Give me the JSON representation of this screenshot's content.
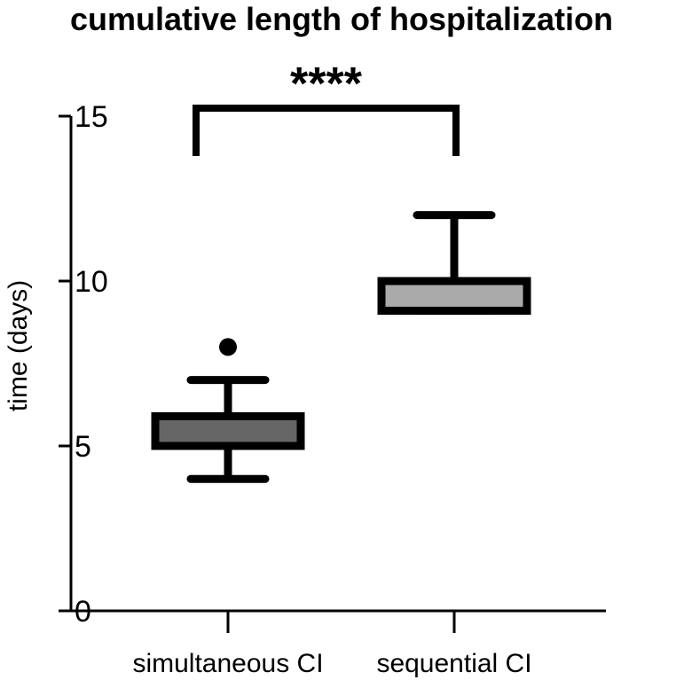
{
  "chart_data": {
    "type": "box",
    "title": "cumulative length of hospitalization",
    "xlabel": "",
    "ylabel": "time (days)",
    "ylim": [
      0,
      15
    ],
    "yticks": [
      0,
      5,
      10,
      15
    ],
    "ytick_labels": [
      "0",
      "5",
      "10",
      "15"
    ],
    "categories": [
      "simultaneous CI",
      "sequential CI"
    ],
    "boxes": [
      {
        "category": "simultaneous CI",
        "min": 4,
        "q1": 5,
        "median": 5,
        "q3": 5.9,
        "max": 7,
        "outliers": [
          8
        ],
        "color": "#666666"
      },
      {
        "category": "sequential CI",
        "min": 9.1,
        "q1": 9.1,
        "median": 10,
        "q3": 10,
        "max": 12,
        "outliers": [],
        "color": "#aaaaaa"
      }
    ],
    "significance": {
      "label": "****",
      "between": [
        "simultaneous CI",
        "sequential CI"
      ],
      "y": 15
    },
    "grid": false,
    "legend": "none"
  }
}
